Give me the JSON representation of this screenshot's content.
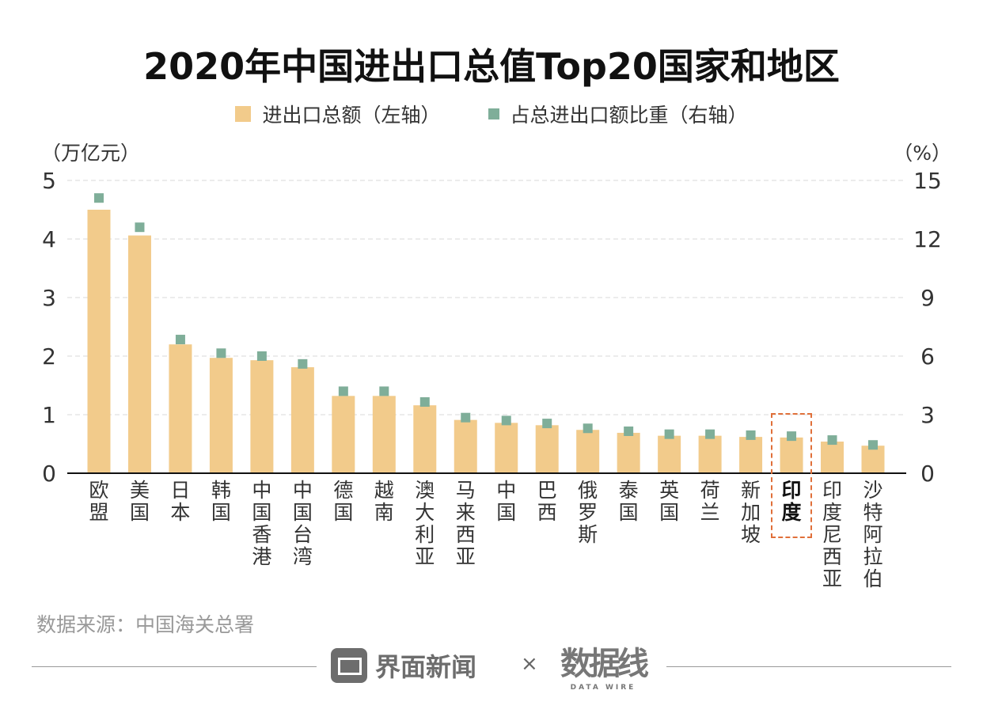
{
  "chart_data": {
    "type": "bar",
    "title": "2020年中国进出口总值Top20国家和地区",
    "legend": [
      {
        "name": "进出口总额（左轴）",
        "color": "#f2cb8b",
        "mark": "bar"
      },
      {
        "name": "占总进出口额比重（右轴）",
        "color": "#7fae99",
        "mark": "square"
      }
    ],
    "legend_placement": "top",
    "ylabel_left": "（万亿元）",
    "ylabel_right": "（%）",
    "ylim_left": [
      0,
      5
    ],
    "ylim_right": [
      0,
      15
    ],
    "yticks_left": [
      "0",
      "1",
      "2",
      "3",
      "4",
      "5"
    ],
    "yticks_right": [
      "0",
      "3",
      "6",
      "9",
      "12",
      "15"
    ],
    "grid": "horizontal dashed",
    "categories": [
      "欧盟",
      "美国",
      "日本",
      "韩国",
      "中国香港",
      "中国台湾",
      "德国",
      "越南",
      "澳大利亚",
      "马来西亚",
      "中国",
      "巴西",
      "俄罗斯",
      "泰国",
      "英国",
      "荷兰",
      "新加坡",
      "印度",
      "印度尼西亚",
      "沙特阿拉伯"
    ],
    "highlight": "印度",
    "series": [
      {
        "name": "进出口总额（左轴）",
        "axis": "left",
        "type": "bar",
        "values": [
          4.5,
          4.06,
          2.2,
          1.97,
          1.93,
          1.81,
          1.32,
          1.32,
          1.16,
          0.91,
          0.86,
          0.82,
          0.74,
          0.69,
          0.64,
          0.64,
          0.62,
          0.61,
          0.54,
          0.47
        ]
      },
      {
        "name": "占总进出口额比重（右轴）",
        "axis": "right",
        "type": "scatter",
        "values": [
          14.1,
          12.6,
          6.85,
          6.15,
          6.0,
          5.6,
          4.2,
          4.2,
          3.65,
          2.85,
          2.7,
          2.55,
          2.3,
          2.15,
          2.0,
          2.0,
          1.95,
          1.9,
          1.7,
          1.45
        ]
      }
    ]
  },
  "source": "数据来源：中国海关总署",
  "footer": {
    "brand1": "界面新闻",
    "times": "×",
    "brand2": "数据线",
    "brand2_sub": "DATA WIRE"
  },
  "colors": {
    "bar": "#f2cb8b",
    "marker": "#7fae99",
    "highlight_box": "#e0703a"
  }
}
